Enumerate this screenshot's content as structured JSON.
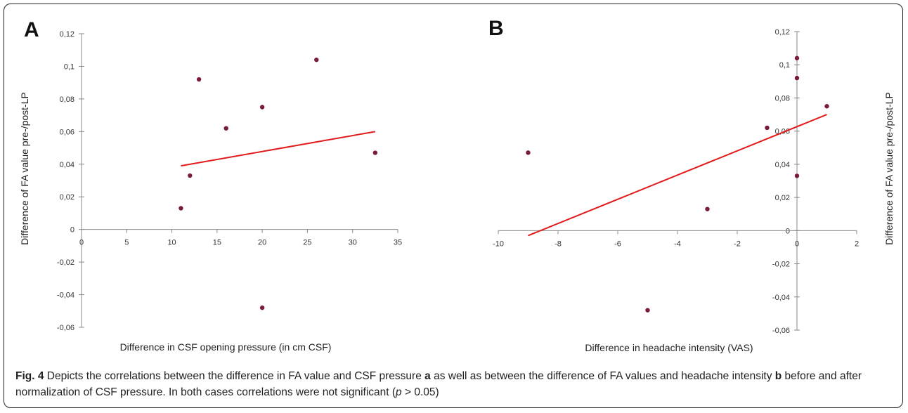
{
  "caption": {
    "fig_label": "Fig. 4",
    "text_1": " Depicts the correlations between the difference in FA value and CSF pressure ",
    "ref_a": "a",
    "text_2": " as well as between the difference of FA values and headache intensity ",
    "ref_b": "b",
    "text_3": " before and after normalization of CSF pressure. In both cases correlations were not significant (",
    "p_symbol": "p",
    "text_4": " > 0.05)"
  },
  "chart_data": [
    {
      "panel": "A",
      "type": "scatter",
      "xlabel": "Difference in CSF opening pressure (in cm CSF)",
      "ylabel": "Difference of FA value pre-/post-LP",
      "xlim": [
        0,
        35
      ],
      "ylim": [
        -0.06,
        0.12
      ],
      "x_ticks": [
        0,
        5,
        10,
        15,
        20,
        25,
        30,
        35
      ],
      "x_tick_labels": [
        "0",
        "5",
        "10",
        "15",
        "20",
        "25",
        "30",
        "35"
      ],
      "y_ticks": [
        -0.06,
        -0.04,
        -0.02,
        0,
        0.02,
        0.04,
        0.06,
        0.08,
        0.1,
        0.12
      ],
      "y_tick_labels": [
        "-0,06",
        "-0,04",
        "-0,02",
        "0",
        "0,02",
        "0,04",
        "0,06",
        "0,08",
        "0,1",
        "0,12"
      ],
      "points": [
        {
          "x": 11,
          "y": 0.013
        },
        {
          "x": 12,
          "y": 0.033
        },
        {
          "x": 13,
          "y": 0.092
        },
        {
          "x": 16,
          "y": 0.062
        },
        {
          "x": 20,
          "y": 0.075
        },
        {
          "x": 20,
          "y": -0.048
        },
        {
          "x": 26,
          "y": 0.104
        },
        {
          "x": 32.5,
          "y": 0.047
        }
      ],
      "trendline": {
        "x": [
          11,
          32.5
        ],
        "y": [
          0.039,
          0.06
        ]
      },
      "grid": false,
      "point_color": "#7a1a3c",
      "trend_color": "#e11b1b"
    },
    {
      "panel": "B",
      "type": "scatter",
      "xlabel": "Difference in headache intensity (VAS)",
      "ylabel": "Difference of FA value pre-/post-LP",
      "xlim": [
        -10,
        2
      ],
      "ylim": [
        -0.06,
        0.12
      ],
      "x_ticks": [
        -10,
        -8,
        -6,
        -4,
        -2,
        0,
        2
      ],
      "x_tick_labels": [
        "-10",
        "-8",
        "-6",
        "-4",
        "-2",
        "0",
        "2"
      ],
      "y_ticks": [
        -0.06,
        -0.04,
        -0.02,
        0,
        0.02,
        0.04,
        0.06,
        0.08,
        0.1,
        0.12
      ],
      "y_tick_labels": [
        "-0,06",
        "-0,04",
        "-0,02",
        "0",
        "0,02",
        "0,04",
        "0,06",
        "0,08",
        "0,1",
        "0,12"
      ],
      "points": [
        {
          "x": -9,
          "y": 0.047
        },
        {
          "x": -5,
          "y": -0.048
        },
        {
          "x": -3,
          "y": 0.013
        },
        {
          "x": -1,
          "y": 0.062
        },
        {
          "x": 0,
          "y": 0.104
        },
        {
          "x": 0,
          "y": 0.092
        },
        {
          "x": 0,
          "y": 0.033
        },
        {
          "x": 1,
          "y": 0.075
        }
      ],
      "trendline": {
        "x": [
          -9,
          1
        ],
        "y": [
          -0.003,
          0.07
        ]
      },
      "grid": false,
      "point_color": "#7a1a3c",
      "trend_color": "#e11b1b"
    }
  ]
}
